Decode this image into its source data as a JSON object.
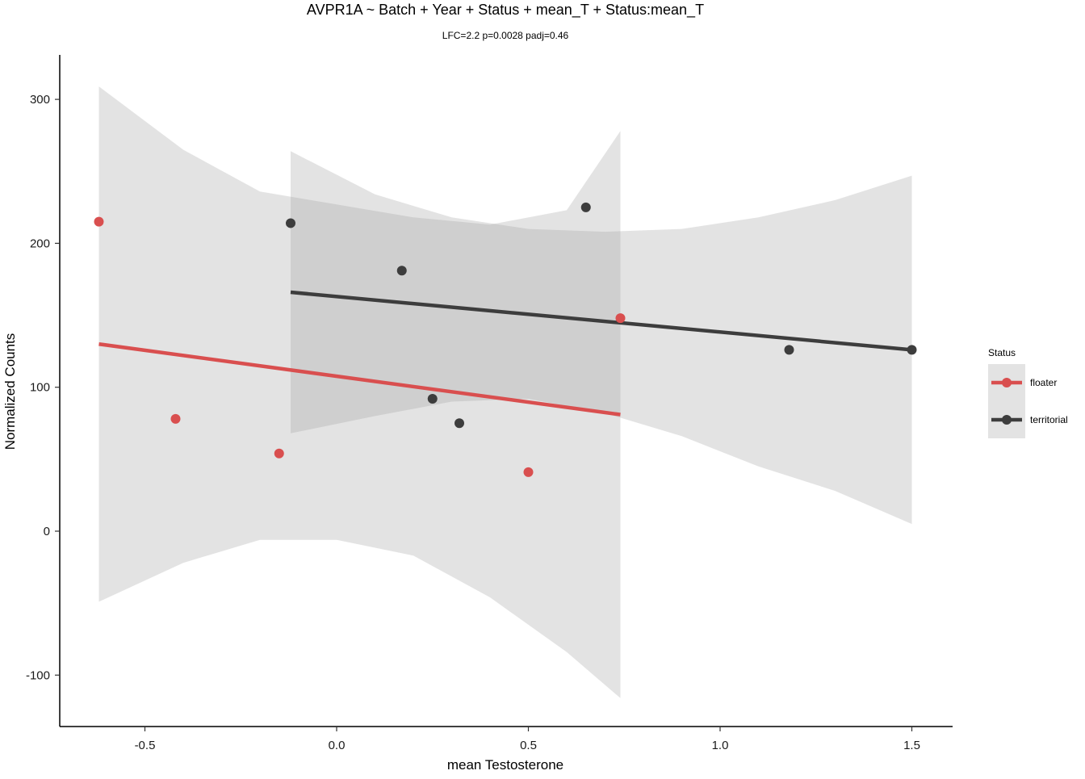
{
  "chart_data": {
    "type": "scatter",
    "title": "AVPR1A ~ Batch + Year + Status + mean_T + Status:mean_T",
    "subtitle": "LFC=2.2 p=0.0028 padj=0.46",
    "xlabel": "mean Testosterone",
    "ylabel": "Normalized Counts",
    "xlim": [
      -0.72,
      1.6
    ],
    "ylim": [
      -135,
      330
    ],
    "xticks": [
      -0.5,
      0.0,
      0.5,
      1.0,
      1.5
    ],
    "xtick_labels": [
      "-0.5",
      "0.0",
      "0.5",
      "1.0",
      "1.5"
    ],
    "yticks": [
      -100,
      0,
      100,
      200,
      300
    ],
    "ytick_labels": [
      "-100",
      "0",
      "100",
      "200",
      "300"
    ],
    "grid": false,
    "legend": {
      "title": "Status",
      "position": "right",
      "entries": [
        "floater",
        "territorial"
      ]
    },
    "series": [
      {
        "name": "floater",
        "color": "#d94f4f",
        "points": [
          {
            "x": -0.62,
            "y": 215
          },
          {
            "x": -0.42,
            "y": 78
          },
          {
            "x": -0.15,
            "y": 54
          },
          {
            "x": 0.5,
            "y": 41
          },
          {
            "x": 0.74,
            "y": 148
          }
        ],
        "fit": {
          "x": [
            -0.62,
            0.74
          ],
          "y": [
            130,
            81
          ]
        },
        "ci": {
          "x": [
            -0.62,
            -0.4,
            -0.2,
            0.0,
            0.2,
            0.4,
            0.6,
            0.74
          ],
          "upper": [
            309,
            265,
            236,
            227,
            218,
            213,
            223,
            278
          ],
          "lower": [
            -49,
            -22,
            -6,
            -6,
            -17,
            -46,
            -84,
            -116
          ]
        }
      },
      {
        "name": "territorial",
        "color": "#3d3d3d",
        "points": [
          {
            "x": -0.12,
            "y": 214
          },
          {
            "x": 0.17,
            "y": 181
          },
          {
            "x": 0.25,
            "y": 92
          },
          {
            "x": 0.32,
            "y": 75
          },
          {
            "x": 0.65,
            "y": 225
          },
          {
            "x": 1.18,
            "y": 126
          },
          {
            "x": 1.5,
            "y": 126
          }
        ],
        "fit": {
          "x": [
            -0.12,
            1.5
          ],
          "y": [
            166,
            126
          ]
        },
        "ci": {
          "x": [
            -0.12,
            0.1,
            0.3,
            0.5,
            0.7,
            0.9,
            1.1,
            1.3,
            1.5
          ],
          "upper": [
            264,
            234,
            218,
            210,
            208,
            210,
            218,
            230,
            247
          ],
          "lower": [
            68,
            80,
            90,
            92,
            82,
            66,
            45,
            28,
            5
          ]
        }
      }
    ]
  }
}
